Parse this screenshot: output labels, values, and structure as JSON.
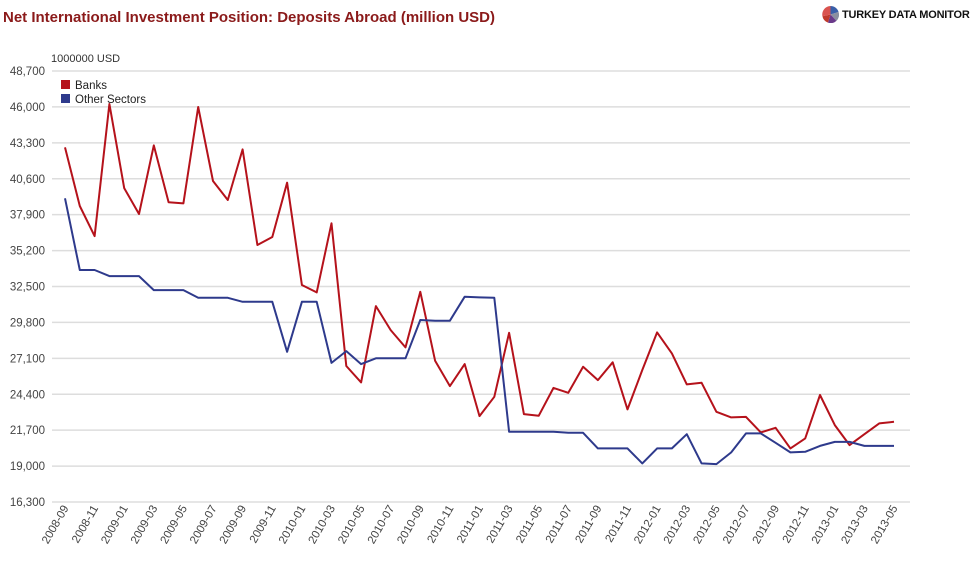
{
  "header": {
    "title": "Net International Investment Position: Deposits Abroad (million USD)",
    "logo_text": "TURKEY DATA MONITOR"
  },
  "chart_data": {
    "type": "line",
    "title": "Net International Investment Position: Deposits Abroad (million USD)",
    "xlabel": "",
    "ylabel": "1000000 USD",
    "ylim": [
      16300,
      48700
    ],
    "yticks": [
      "48,700",
      "46,000",
      "43,300",
      "40,600",
      "37,900",
      "35,200",
      "32,500",
      "29,800",
      "27,100",
      "24,400",
      "21,700",
      "19,000",
      "16,300"
    ],
    "ytick_values": [
      48700,
      46000,
      43300,
      40600,
      37900,
      35200,
      32500,
      29800,
      27100,
      24400,
      21700,
      19000,
      16300
    ],
    "grid": true,
    "legend_position": "top-left",
    "x": [
      "2008-09",
      "2008-10",
      "2008-11",
      "2008-12",
      "2009-01",
      "2009-02",
      "2009-03",
      "2009-04",
      "2009-05",
      "2009-06",
      "2009-07",
      "2009-08",
      "2009-09",
      "2009-10",
      "2009-11",
      "2009-12",
      "2010-01",
      "2010-02",
      "2010-03",
      "2010-04",
      "2010-05",
      "2010-06",
      "2010-07",
      "2010-08",
      "2010-09",
      "2010-10",
      "2010-11",
      "2010-12",
      "2011-01",
      "2011-02",
      "2011-03",
      "2011-04",
      "2011-05",
      "2011-06",
      "2011-07",
      "2011-08",
      "2011-09",
      "2011-10",
      "2011-11",
      "2011-12",
      "2012-01",
      "2012-02",
      "2012-03",
      "2012-04",
      "2012-05",
      "2012-06",
      "2012-07",
      "2012-08",
      "2012-09",
      "2012-10",
      "2012-11",
      "2012-12",
      "2013-01",
      "2013-02",
      "2013-03",
      "2013-04",
      "2013-05"
    ],
    "xtick_labels": [
      "2008-09",
      "2008-11",
      "2009-01",
      "2009-03",
      "2009-05",
      "2009-07",
      "2009-09",
      "2009-11",
      "2010-01",
      "2010-03",
      "2010-05",
      "2010-07",
      "2010-09",
      "2010-11",
      "2011-01",
      "2011-03",
      "2011-05",
      "2011-07",
      "2011-09",
      "2011-11",
      "2012-01",
      "2012-03",
      "2012-05",
      "2012-07",
      "2012-09",
      "2012-11",
      "2013-01",
      "2013-03",
      "2013-05"
    ],
    "series": [
      {
        "name": "Banks",
        "color": "#b5121b",
        "values": [
          42960,
          38550,
          36290,
          46220,
          39900,
          37950,
          43110,
          38830,
          38750,
          45990,
          40430,
          39000,
          42810,
          35620,
          36220,
          40300,
          32610,
          32060,
          37250,
          26520,
          25290,
          31030,
          29220,
          27920,
          32100,
          26920,
          25010,
          26670,
          22760,
          24210,
          29020,
          22910,
          22780,
          24880,
          24510,
          26460,
          25460,
          26800,
          23260,
          26220,
          29050,
          27470,
          25140,
          25260,
          23080,
          22660,
          22700,
          21530,
          21880,
          20330,
          21080,
          24340,
          22080,
          20580,
          21400,
          22210,
          22330
        ]
      },
      {
        "name": "Other Sectors",
        "color": "#2e3a8c",
        "values": [
          39130,
          33740,
          33740,
          33280,
          33280,
          33280,
          32230,
          32230,
          32230,
          31650,
          31650,
          31650,
          31350,
          31350,
          31350,
          27590,
          31350,
          31350,
          26760,
          27640,
          26670,
          27100,
          27100,
          27100,
          29980,
          29930,
          29930,
          31730,
          31680,
          31650,
          21580,
          21580,
          21580,
          21580,
          21500,
          21500,
          20330,
          20330,
          20330,
          19200,
          20330,
          20330,
          21400,
          19200,
          19150,
          20030,
          21460,
          21460,
          20750,
          20030,
          20070,
          20520,
          20820,
          20820,
          20520,
          20520,
          20520
        ]
      }
    ]
  }
}
